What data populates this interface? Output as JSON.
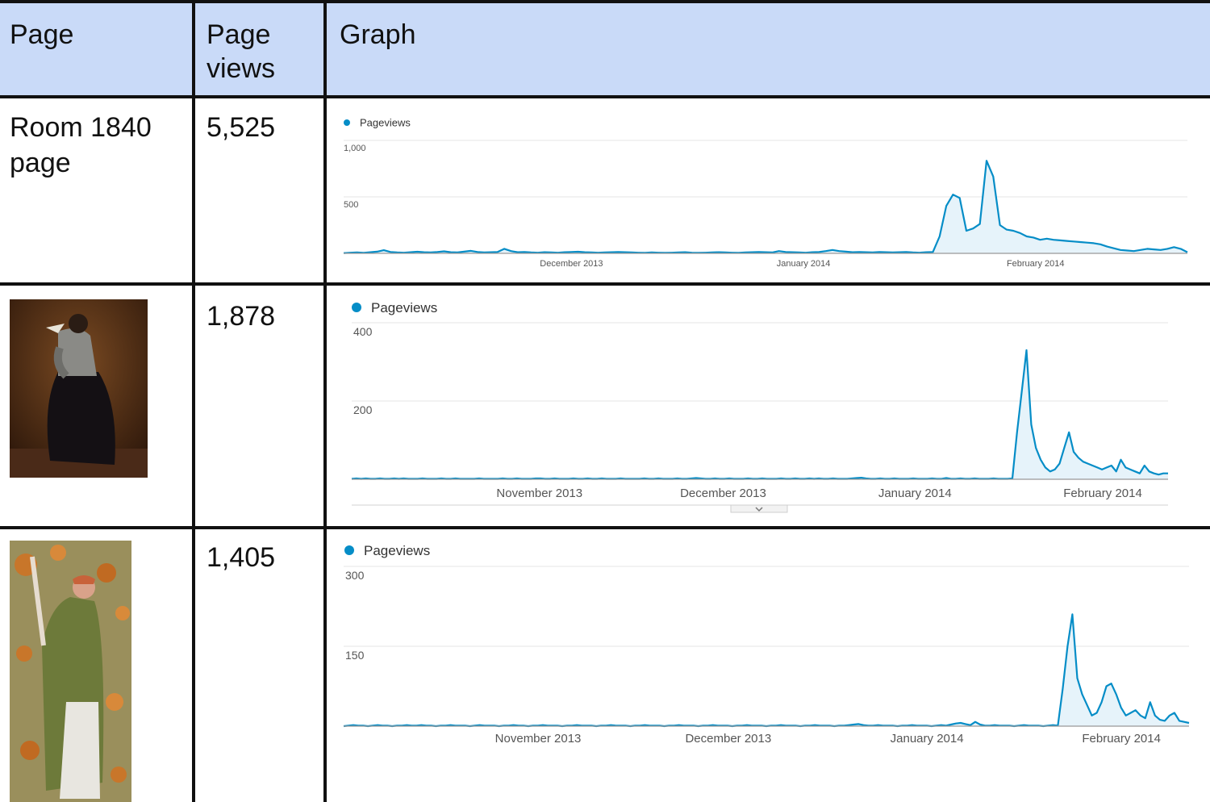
{
  "table": {
    "headers": {
      "page": "Page",
      "views": "Page views",
      "graph": "Graph"
    },
    "rows": [
      {
        "page": "Room 1840 page",
        "views": "5,525",
        "thumbnail": ""
      },
      {
        "page": "",
        "views": "1,878",
        "thumbnail": "painting of a woman in a dark crinoline dress with a white bird"
      },
      {
        "page": "",
        "views": "1,405",
        "thumbnail": "painting of a woman in a green shawl among orange blossoms"
      }
    ]
  },
  "colors": {
    "header_bg": "#c9daf8",
    "series": "#058dc7",
    "fill": "#e6f3fa",
    "grid_line": "#111111"
  },
  "chart_data": [
    {
      "type": "area",
      "legend": "Pageviews",
      "ylim": [
        0,
        1000
      ],
      "yticks": [
        "1,000",
        "500"
      ],
      "ytick_values": [
        1000,
        500
      ],
      "xticks": [
        "December 2013",
        "January 2014",
        "February 2014"
      ],
      "xtick_pos": [
        0.27,
        0.545,
        0.82
      ],
      "values": [
        2,
        6,
        8,
        4,
        10,
        15,
        28,
        12,
        8,
        6,
        10,
        14,
        10,
        8,
        12,
        18,
        10,
        8,
        15,
        22,
        12,
        8,
        10,
        12,
        40,
        20,
        10,
        12,
        8,
        6,
        10,
        8,
        6,
        10,
        12,
        14,
        10,
        8,
        6,
        8,
        10,
        12,
        10,
        8,
        6,
        4,
        8,
        6,
        4,
        6,
        8,
        10,
        6,
        4,
        6,
        8,
        10,
        8,
        6,
        4,
        8,
        10,
        12,
        10,
        8,
        20,
        12,
        10,
        8,
        6,
        10,
        12,
        20,
        30,
        20,
        15,
        10,
        12,
        10,
        8,
        12,
        10,
        8,
        10,
        12,
        8,
        6,
        10,
        12,
        150,
        420,
        520,
        490,
        200,
        220,
        260,
        820,
        680,
        250,
        210,
        200,
        180,
        150,
        140,
        120,
        130,
        120,
        115,
        110,
        105,
        100,
        95,
        90,
        80,
        60,
        45,
        30,
        25,
        20,
        30,
        40,
        35,
        30,
        40,
        55,
        40,
        10
      ]
    },
    {
      "type": "area",
      "legend": "Pageviews",
      "ylim": [
        0,
        400
      ],
      "yticks": [
        "400",
        "200"
      ],
      "ytick_values": [
        400,
        200
      ],
      "xticks": [
        "November 2013",
        "December 2013",
        "January 2014",
        "February 2014"
      ],
      "xtick_pos": [
        0.23,
        0.455,
        0.69,
        0.92
      ],
      "values": [
        1,
        2,
        1,
        2,
        1,
        1,
        2,
        1,
        1,
        2,
        1,
        2,
        1,
        1,
        1,
        2,
        1,
        1,
        1,
        2,
        1,
        1,
        2,
        1,
        1,
        1,
        1,
        2,
        1,
        1,
        1,
        1,
        2,
        1,
        1,
        2,
        1,
        1,
        1,
        2,
        2,
        1,
        1,
        2,
        1,
        1,
        1,
        2,
        1,
        1,
        2,
        1,
        1,
        2,
        1,
        1,
        1,
        2,
        1,
        1,
        1,
        1,
        2,
        1,
        1,
        2,
        1,
        1,
        1,
        2,
        1,
        1,
        2,
        3,
        2,
        1,
        1,
        2,
        1,
        1,
        2,
        1,
        1,
        1,
        2,
        1,
        1,
        2,
        1,
        1,
        1,
        2,
        1,
        1,
        2,
        1,
        1,
        2,
        1,
        2,
        1,
        1,
        2,
        1,
        1,
        1,
        2,
        3,
        4,
        2,
        1,
        1,
        2,
        1,
        1,
        2,
        1,
        1,
        1,
        2,
        1,
        1,
        1,
        2,
        1,
        1,
        3,
        1,
        1,
        2,
        1,
        1,
        2,
        1,
        1,
        1,
        2,
        1,
        1,
        1,
        2,
        120,
        225,
        330,
        140,
        80,
        50,
        30,
        20,
        25,
        40,
        80,
        120,
        70,
        55,
        45,
        40,
        35,
        30,
        25,
        30,
        35,
        20,
        50,
        30,
        25,
        20,
        15,
        35,
        20,
        15,
        12,
        15,
        15
      ]
    },
    {
      "type": "area",
      "legend": "Pageviews",
      "ylim": [
        0,
        300
      ],
      "yticks": [
        "300",
        "150"
      ],
      "ytick_values": [
        300,
        150
      ],
      "xticks": [
        "November 2013",
        "December 2013",
        "January 2014",
        "February 2014"
      ],
      "xtick_pos": [
        0.23,
        0.455,
        0.69,
        0.92
      ],
      "values": [
        0,
        1,
        2,
        1,
        1,
        0,
        1,
        2,
        1,
        1,
        0,
        1,
        1,
        2,
        1,
        1,
        2,
        1,
        1,
        0,
        1,
        1,
        2,
        1,
        1,
        1,
        0,
        1,
        2,
        1,
        1,
        1,
        0,
        1,
        1,
        2,
        1,
        1,
        0,
        1,
        1,
        2,
        1,
        1,
        1,
        0,
        1,
        1,
        2,
        1,
        1,
        1,
        0,
        1,
        1,
        2,
        1,
        1,
        1,
        0,
        1,
        1,
        2,
        1,
        1,
        1,
        0,
        1,
        1,
        2,
        1,
        1,
        1,
        0,
        1,
        1,
        2,
        1,
        1,
        1,
        0,
        1,
        1,
        2,
        1,
        1,
        1,
        0,
        1,
        1,
        2,
        1,
        1,
        1,
        0,
        1,
        1,
        2,
        1,
        1,
        1,
        0,
        1,
        1,
        2,
        3,
        4,
        2,
        1,
        1,
        2,
        1,
        1,
        1,
        0,
        1,
        1,
        2,
        1,
        1,
        1,
        0,
        1,
        2,
        1,
        3,
        5,
        6,
        4,
        2,
        8,
        3,
        1,
        1,
        2,
        1,
        1,
        1,
        0,
        1,
        2,
        1,
        1,
        1,
        0,
        1,
        2,
        1,
        70,
        150,
        210,
        90,
        60,
        40,
        20,
        25,
        45,
        75,
        80,
        60,
        35,
        20,
        25,
        30,
        20,
        15,
        45,
        20,
        12,
        10,
        20,
        25,
        10,
        8,
        6
      ]
    }
  ]
}
